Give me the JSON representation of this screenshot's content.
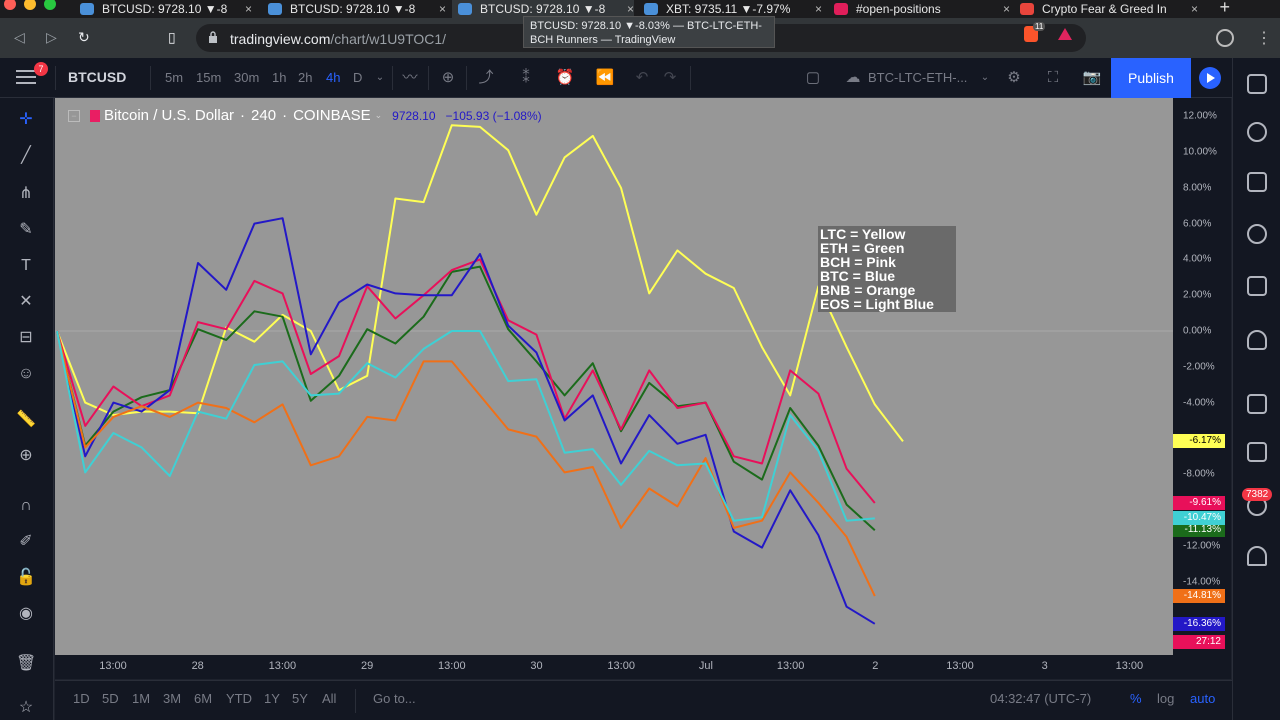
{
  "browser": {
    "tabs": [
      {
        "title": "BTCUSD: 9728.10 ▼-8",
        "close": "×"
      },
      {
        "title": "BTCUSD: 9728.10 ▼-8",
        "close": "×"
      },
      {
        "title": "BTCUSD: 9728.10 ▼-8",
        "close": "×"
      },
      {
        "title": "XBT: 9735.11 ▼-7.97%",
        "close": "×"
      },
      {
        "title": "#open-positions",
        "close": "×"
      },
      {
        "title": "Crypto Fear & Greed In",
        "close": "×"
      }
    ],
    "new_tab": "+",
    "url_host": "tradingview.com",
    "url_path": "/chart/w1U9TOC1/",
    "brave_count": "11",
    "tooltip_line1": "BTCUSD: 9728.10 ▼-8.03% — BTC-LTC-ETH-",
    "tooltip_line2": "BCH Runners — TradingView"
  },
  "toolbar": {
    "menu_badge": "7",
    "symbol": "BTCUSD",
    "timeframes": [
      "5m",
      "15m",
      "30m",
      "1h",
      "2h",
      "4h",
      "D"
    ],
    "active_timeframe": "4h",
    "layout_name": "BTC-LTC-ETH-...",
    "publish_label": "Publish"
  },
  "legend": {
    "title": "Bitcoin / U.S. Dollar",
    "interval": "240",
    "exchange": "COINBASE",
    "price": "9728.10",
    "change": "−105.93 (−1.08%)"
  },
  "note": [
    "LTC = Yellow",
    "ETH = Green",
    "BCH = Pink",
    "BTC = Blue",
    "BNB = Orange",
    "EOS = Light Blue"
  ],
  "right_badge": "7382",
  "chart_data": {
    "type": "line",
    "y_unit": "%",
    "ylim": [
      -16.5,
      12.5
    ],
    "y_ticks": [
      12,
      10,
      8,
      6,
      4,
      2,
      0,
      -2,
      -4,
      -8,
      -12,
      -14
    ],
    "x_tick_labels": [
      "13:00",
      "28",
      "13:00",
      "29",
      "13:00",
      "30",
      "13:00",
      "Jul",
      "13:00",
      "2",
      "13:00",
      "3",
      "13:00"
    ],
    "zero_line": 0,
    "series": [
      {
        "name": "LTC",
        "color": "#ffff55",
        "last_label": "-6.17%",
        "values": [
          0.0,
          -4.0,
          -4.7,
          -4.5,
          -4.5,
          -4.6,
          0.2,
          -0.6,
          0.9,
          0.0,
          -3.3,
          -2.5,
          7.4,
          7.2,
          11.5,
          11.4,
          10.1,
          6.5,
          9.7,
          10.9,
          8.0,
          2.1,
          4.5,
          3.2,
          2.4,
          -0.9,
          -3.6,
          2.5,
          -0.9,
          -4.1,
          -6.17
        ]
      },
      {
        "name": "ETH",
        "color": "#1b6b1b",
        "last_label": "-11.13%",
        "values": [
          0.0,
          -6.4,
          -4.5,
          -3.7,
          -3.3,
          0.1,
          -0.5,
          1.1,
          0.8,
          -3.9,
          -2.5,
          0.1,
          -0.7,
          0.8,
          3.3,
          3.6,
          0.1,
          -1.7,
          -3.6,
          -1.8,
          -5.6,
          -2.9,
          -4.2,
          -4.0,
          -7.3,
          -8.3,
          -4.3,
          -6.4,
          -9.7,
          -11.13
        ]
      },
      {
        "name": "BCH",
        "color": "#e8105a",
        "last_label": "-9.61%",
        "values": [
          0.0,
          -5.3,
          -3.1,
          -4.2,
          -3.6,
          0.5,
          0.1,
          2.8,
          2.1,
          -2.4,
          -1.4,
          2.5,
          0.7,
          2.0,
          3.4,
          4.0,
          0.6,
          -0.2,
          -4.9,
          -2.2,
          -5.5,
          -2.2,
          -4.3,
          -4.0,
          -7.0,
          -7.4,
          -2.2,
          -3.5,
          -7.7,
          -9.61
        ]
      },
      {
        "name": "BTC",
        "color": "#2318c7",
        "last_label": "-16.36%",
        "values": [
          0.0,
          -7.0,
          -4.0,
          -4.5,
          -3.3,
          3.8,
          2.3,
          6.0,
          6.3,
          -1.3,
          1.6,
          2.6,
          2.1,
          2.0,
          2.0,
          4.3,
          0.3,
          -1.2,
          -5.0,
          -3.6,
          -7.4,
          -4.7,
          -6.3,
          -5.8,
          -11.2,
          -12.1,
          -8.9,
          -11.4,
          -15.4,
          -16.36
        ]
      },
      {
        "name": "BNB",
        "color": "#f07018",
        "last_label": "-14.81%",
        "values": [
          0.0,
          -6.5,
          -4.8,
          -4.2,
          -4.8,
          -4.0,
          -4.3,
          -5.1,
          -4.1,
          -7.5,
          -7.0,
          -4.8,
          -5.0,
          -1.7,
          -1.7,
          -3.6,
          -5.5,
          -5.9,
          -7.9,
          -7.6,
          -11.0,
          -8.8,
          -9.8,
          -7.1,
          -11.0,
          -10.6,
          -7.9,
          -9.6,
          -11.5,
          -14.81
        ]
      },
      {
        "name": "EOS",
        "color": "#3fd0d4",
        "last_label": "-10.47%",
        "values": [
          0.0,
          -7.9,
          -5.7,
          -6.5,
          -8.1,
          -4.5,
          -4.9,
          -1.9,
          -1.7,
          -3.6,
          -3.5,
          -1.8,
          -2.6,
          -1.0,
          0.0,
          0.0,
          -2.8,
          -2.7,
          -6.8,
          -6.6,
          -8.6,
          -6.7,
          -7.5,
          -7.4,
          -10.6,
          -10.4,
          -4.7,
          -6.7,
          -10.6,
          -10.47
        ]
      }
    ],
    "time_remaining": "27:12"
  },
  "bottom": {
    "ranges": [
      "1D",
      "5D",
      "1M",
      "3M",
      "6M",
      "YTD",
      "1Y",
      "5Y",
      "All"
    ],
    "goto": "Go to...",
    "clock": "04:32:47 (UTC-7)",
    "percent": "%",
    "log": "log",
    "auto": "auto"
  }
}
